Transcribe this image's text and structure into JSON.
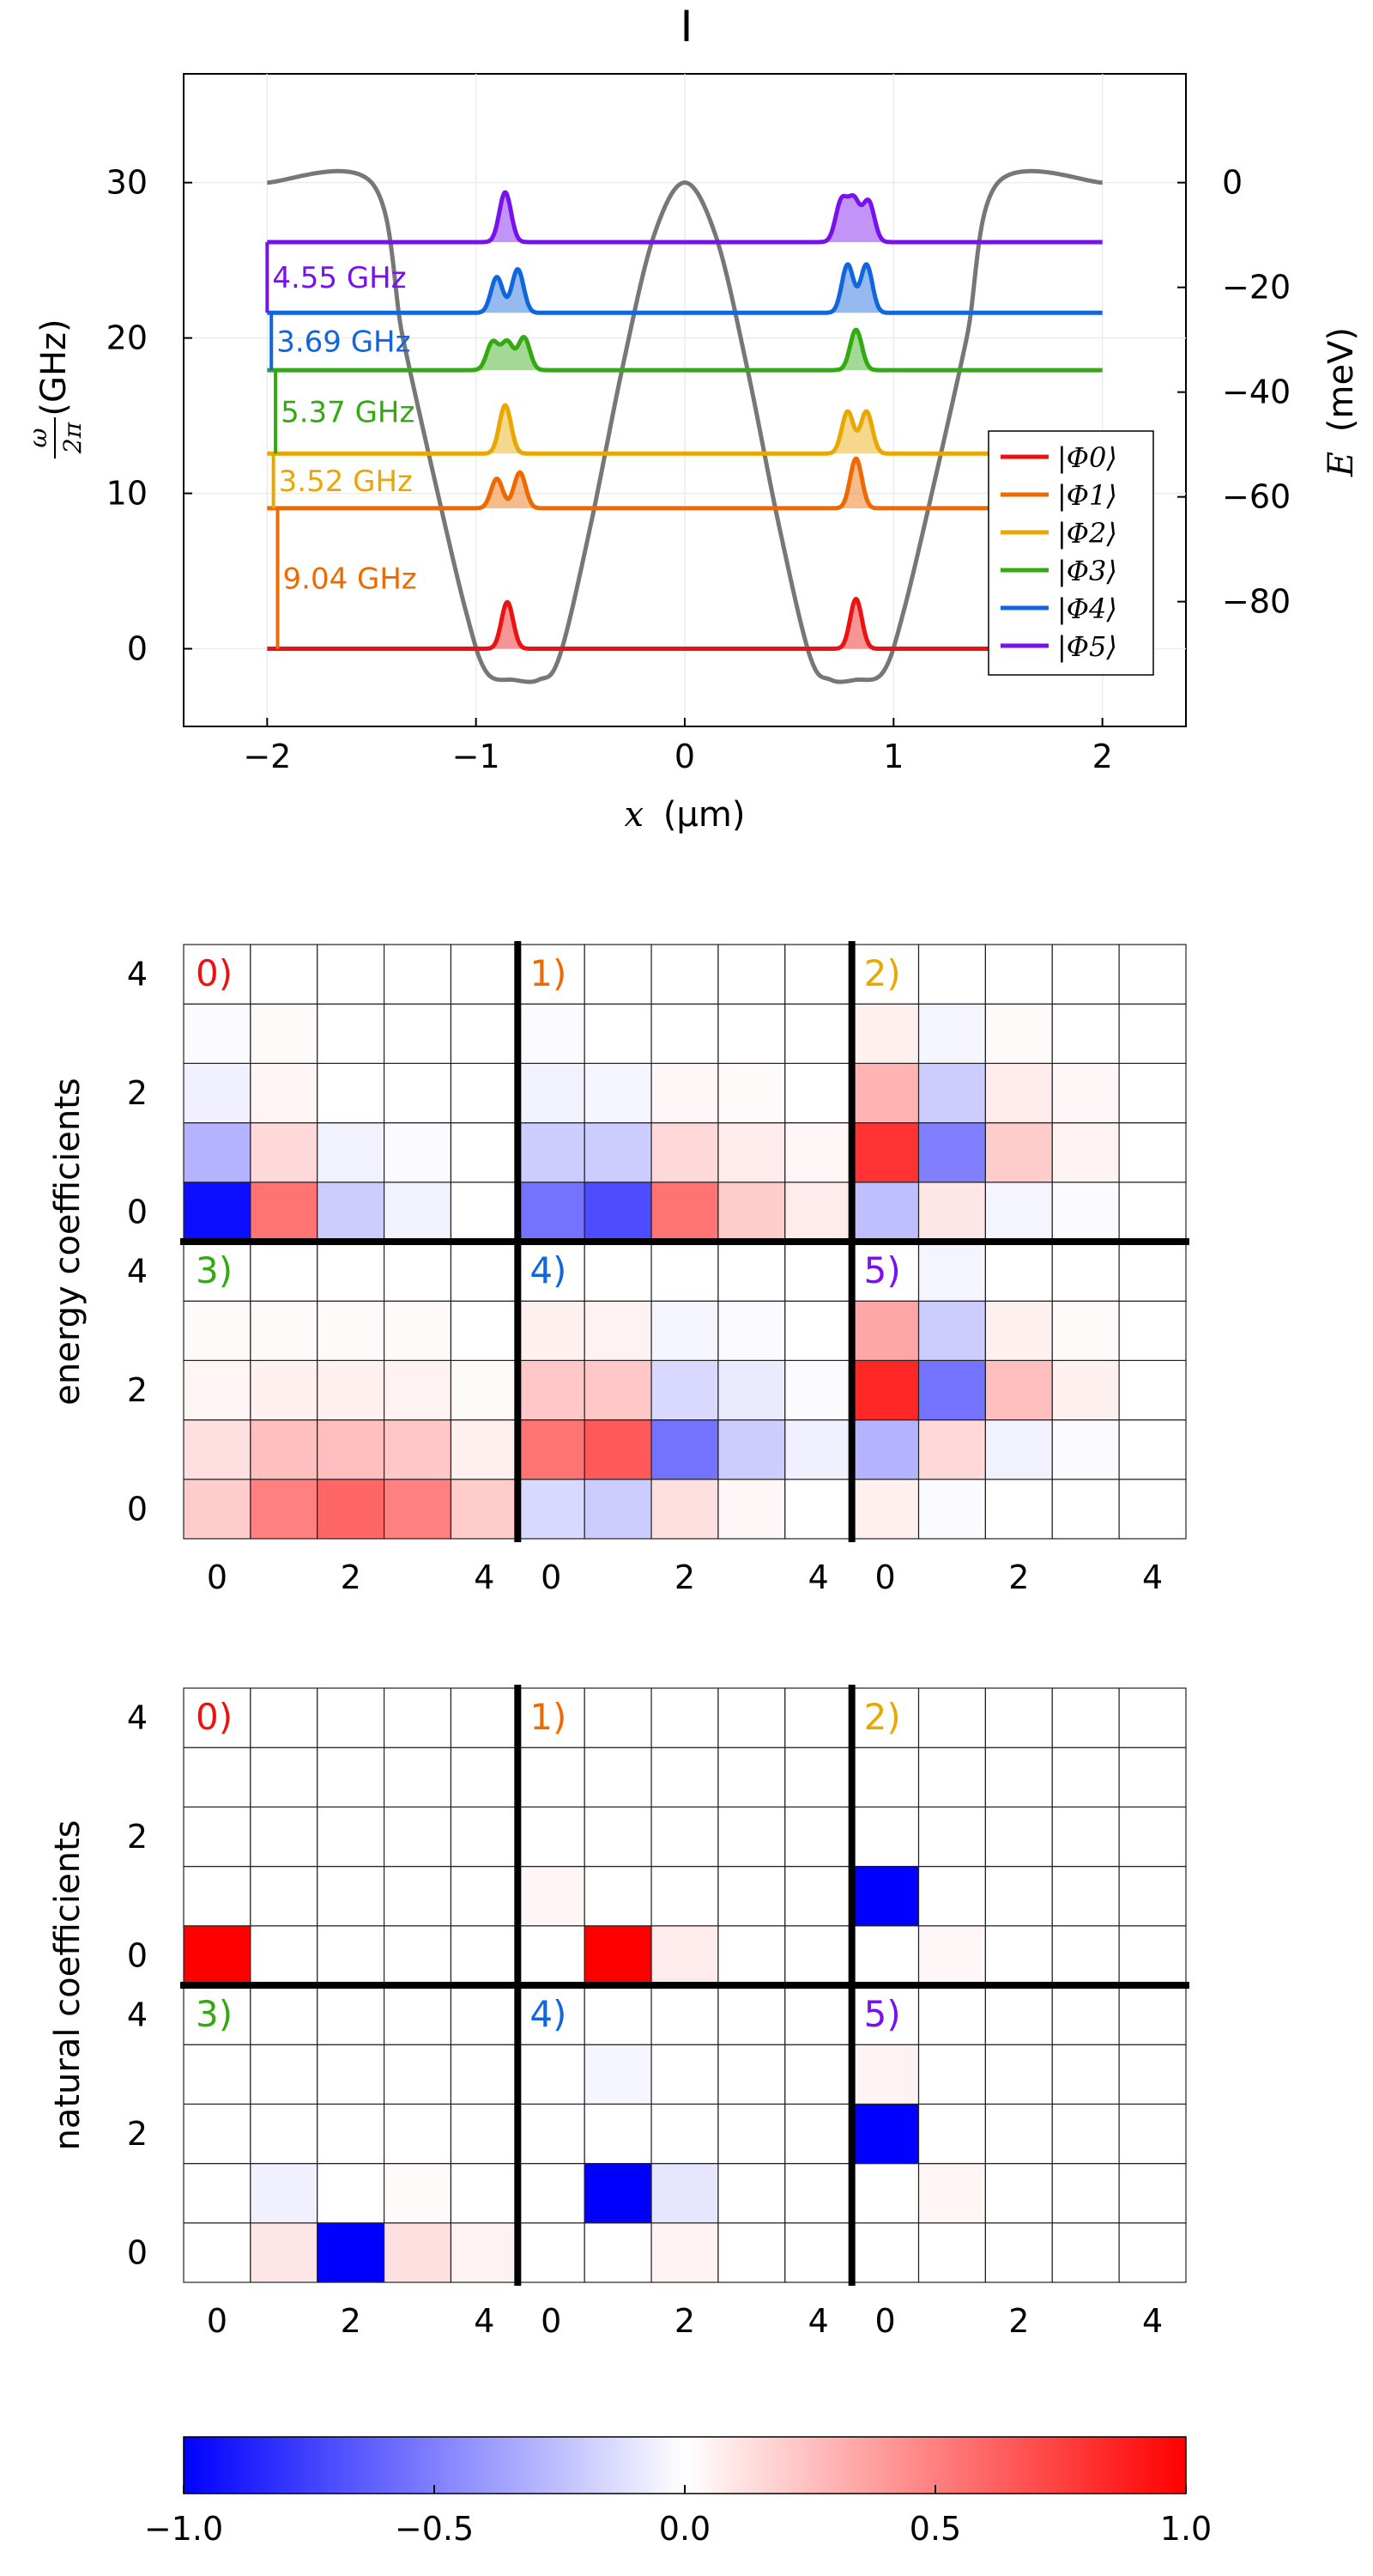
{
  "title": "I",
  "chart_data": [
    {
      "type": "line",
      "xlabel_var": "x",
      "xlabel_unit": "(μm)",
      "ylabel_left_unit": "(GHz)",
      "ylabel_left_num": "ω",
      "ylabel_left_den": "2π",
      "ylabel_right_var": "E",
      "ylabel_right_unit": "(meV)",
      "xlim": [
        -2.4,
        2.4
      ],
      "ylim_left": [
        -5,
        37
      ],
      "xticks": [
        -2,
        -1,
        0,
        1,
        2
      ],
      "xtick_labels": [
        "−2",
        "−1",
        "0",
        "1",
        "2"
      ],
      "yticks_left": [
        0,
        10,
        20,
        30
      ],
      "yticks_left_labels": [
        "0",
        "10",
        "20",
        "30"
      ],
      "yticks_right": [
        0,
        -20,
        -40,
        -60,
        -80
      ],
      "yticks_right_labels": [
        "0",
        "−20",
        "−40",
        "−60",
        "−80"
      ],
      "right_axis_map": {
        "E0": 0,
        "omega_at_E0": 30,
        "omega_per_meV": 0.3371
      },
      "grid": true,
      "potential": {
        "color": "#777777",
        "points": [
          [
            -2,
            30
          ],
          [
            -1.5,
            30
          ],
          [
            -1.35,
            20
          ],
          [
            -1.2,
            11
          ],
          [
            -1.05,
            2.5
          ],
          [
            -0.95,
            -1.5
          ],
          [
            -0.82,
            -2
          ],
          [
            -0.7,
            -2
          ],
          [
            -0.6,
            -0.5
          ],
          [
            -0.45,
            8
          ],
          [
            -0.3,
            18
          ],
          [
            -0.15,
            26.5
          ],
          [
            0,
            30
          ],
          [
            0.15,
            26.5
          ],
          [
            0.3,
            18
          ],
          [
            0.45,
            8
          ],
          [
            0.6,
            -0.5
          ],
          [
            0.7,
            -2
          ],
          [
            0.82,
            -2
          ],
          [
            0.95,
            -1.5
          ],
          [
            1.05,
            2.5
          ],
          [
            1.2,
            11
          ],
          [
            1.35,
            20
          ],
          [
            1.5,
            30
          ],
          [
            2,
            30
          ]
        ]
      },
      "series": [
        {
          "name": "|Φ0⟩",
          "color": "#ee1111",
          "baseline": 0,
          "peaks": [
            [
              -0.85,
              3
            ],
            [
              0.82,
              3.2
            ]
          ]
        },
        {
          "name": "|Φ1⟩",
          "color": "#ee6a00",
          "baseline": 9.04,
          "peaks": [
            [
              -0.9,
              1.9
            ],
            [
              -0.79,
              2.3
            ],
            [
              0.82,
              3.2
            ]
          ]
        },
        {
          "name": "|Φ2⟩",
          "color": "#e8a800",
          "baseline": 12.56,
          "peaks": [
            [
              -0.86,
              3.1
            ],
            [
              0.78,
              2.7
            ],
            [
              0.87,
              2.7
            ]
          ]
        },
        {
          "name": "|Φ3⟩",
          "color": "#33aa11",
          "baseline": 17.93,
          "peaks": [
            [
              -0.92,
              1.8
            ],
            [
              -0.85,
              1.8
            ],
            [
              -0.77,
              2.1
            ],
            [
              0.82,
              2.6
            ]
          ]
        },
        {
          "name": "|Φ4⟩",
          "color": "#1166dd",
          "baseline": 21.62,
          "peaks": [
            [
              -0.9,
              2.3
            ],
            [
              -0.8,
              2.8
            ],
            [
              0.78,
              3.1
            ],
            [
              0.87,
              3.1
            ]
          ]
        },
        {
          "name": "|Φ5⟩",
          "color": "#7711ee",
          "baseline": 26.17,
          "peaks": [
            [
              -0.86,
              3.2
            ],
            [
              0.75,
              2.6
            ],
            [
              0.81,
              2.6
            ],
            [
              0.88,
              2.6
            ]
          ]
        }
      ],
      "annotations": [
        {
          "text": "9.04 GHz",
          "color": "#ee6a00",
          "y0": 0,
          "y1": 9.04,
          "xa": -1.95
        },
        {
          "text": "3.52 GHz",
          "color": "#e8a800",
          "y0": 9.04,
          "y1": 12.56,
          "xa": -1.97
        },
        {
          "text": "5.37 GHz",
          "color": "#33aa11",
          "y0": 12.56,
          "y1": 17.93,
          "xa": -1.96
        },
        {
          "text": "3.69 GHz",
          "color": "#1166dd",
          "y0": 17.93,
          "y1": 21.62,
          "xa": -1.98
        },
        {
          "text": "4.55 GHz",
          "color": "#7711ee",
          "y0": 21.62,
          "y1": 26.17,
          "xa": -2.0
        }
      ],
      "legend_position": "bottom-right"
    },
    {
      "type": "heatmap",
      "ylabel": "energy coefficients",
      "panel_labels": [
        "0)",
        "1)",
        "2)",
        "3)",
        "4)",
        "5)"
      ],
      "tick_labels": [
        "0",
        "2",
        "4"
      ],
      "matrices": [
        [
          [
            -0.95,
            0.55,
            -0.2,
            -0.05,
            0
          ],
          [
            -0.3,
            0.15,
            -0.05,
            -0.02,
            0
          ],
          [
            -0.06,
            0.04,
            0,
            0,
            0
          ],
          [
            -0.02,
            0.02,
            0,
            0,
            0
          ],
          [
            0,
            0,
            0,
            0,
            0
          ]
        ],
        [
          [
            -0.55,
            -0.7,
            0.55,
            0.2,
            0.08
          ],
          [
            -0.2,
            -0.2,
            0.15,
            0.08,
            0.03
          ],
          [
            -0.05,
            -0.04,
            0.03,
            0.02,
            0
          ],
          [
            -0.02,
            0,
            0,
            0,
            0
          ],
          [
            0,
            0,
            0,
            0,
            0
          ]
        ],
        [
          [
            -0.25,
            0.1,
            -0.04,
            -0.02,
            0
          ],
          [
            0.8,
            -0.5,
            0.2,
            0.05,
            0
          ],
          [
            0.3,
            -0.2,
            0.08,
            0.03,
            0
          ],
          [
            0.06,
            -0.04,
            0.02,
            0,
            0
          ],
          [
            0,
            0,
            0,
            0,
            0
          ]
        ],
        [
          [
            0.2,
            0.5,
            0.6,
            0.5,
            0.2
          ],
          [
            0.12,
            0.25,
            0.25,
            0.22,
            0.06
          ],
          [
            0.04,
            0.06,
            0.06,
            0.05,
            0.02
          ],
          [
            0.02,
            0.02,
            0.02,
            0.02,
            0
          ],
          [
            0,
            0,
            0,
            0,
            0
          ]
        ],
        [
          [
            -0.15,
            -0.2,
            0.12,
            0.03,
            0
          ],
          [
            0.55,
            0.65,
            -0.55,
            -0.2,
            -0.06
          ],
          [
            0.22,
            0.22,
            -0.15,
            -0.08,
            -0.02
          ],
          [
            0.06,
            0.05,
            -0.04,
            -0.02,
            0
          ],
          [
            0,
            0,
            0,
            0,
            0
          ]
        ],
        [
          [
            0.06,
            -0.02,
            0,
            0,
            0
          ],
          [
            -0.3,
            0.15,
            -0.05,
            -0.02,
            0
          ],
          [
            0.85,
            -0.55,
            0.25,
            0.06,
            0
          ],
          [
            0.35,
            -0.2,
            0.06,
            0.02,
            0
          ],
          [
            0,
            -0.04,
            0,
            0,
            0
          ]
        ]
      ]
    },
    {
      "type": "heatmap",
      "ylabel": "natural coefficients",
      "panel_labels": [
        "0)",
        "1)",
        "2)",
        "3)",
        "4)",
        "5)"
      ],
      "tick_labels": [
        "0",
        "2",
        "4"
      ],
      "matrices": [
        [
          [
            1,
            0,
            0,
            0,
            0
          ],
          [
            0,
            0,
            0,
            0,
            0
          ],
          [
            0,
            0,
            0,
            0,
            0
          ],
          [
            0,
            0,
            0,
            0,
            0
          ],
          [
            0,
            0,
            0,
            0,
            0
          ]
        ],
        [
          [
            0,
            1,
            0.08,
            0,
            0
          ],
          [
            0.04,
            0,
            0,
            0,
            0
          ],
          [
            0,
            0,
            0,
            0,
            0
          ],
          [
            0,
            0,
            0,
            0,
            0
          ],
          [
            0,
            0,
            0,
            0,
            0
          ]
        ],
        [
          [
            0,
            0.03,
            0,
            0,
            0
          ],
          [
            -1,
            0,
            0,
            0,
            0
          ],
          [
            0,
            0,
            0,
            0,
            0
          ],
          [
            0,
            0,
            0,
            0,
            0
          ],
          [
            0,
            0,
            0,
            0,
            0
          ]
        ],
        [
          [
            0,
            0.1,
            -1,
            0.12,
            0.05
          ],
          [
            0,
            -0.06,
            0,
            0.02,
            0
          ],
          [
            0,
            0,
            0,
            0,
            0
          ],
          [
            0,
            0,
            0,
            0,
            0
          ],
          [
            0,
            0,
            0,
            0,
            0
          ]
        ],
        [
          [
            0,
            0,
            0.05,
            0,
            0
          ],
          [
            0,
            -1,
            -0.1,
            0,
            0
          ],
          [
            0,
            0,
            0,
            0,
            0
          ],
          [
            0,
            -0.04,
            0,
            0,
            0
          ],
          [
            0,
            0,
            0,
            0,
            0
          ]
        ],
        [
          [
            0,
            0,
            0,
            0,
            0
          ],
          [
            0,
            0.04,
            0,
            0,
            0
          ],
          [
            -1,
            0,
            0,
            0,
            0
          ],
          [
            0.05,
            0,
            0,
            0,
            0
          ],
          [
            0,
            0,
            0,
            0,
            0
          ]
        ]
      ]
    },
    {
      "type": "heatmap",
      "role": "colorbar",
      "range": [
        -1,
        1
      ],
      "tick_values": [
        -1,
        -0.5,
        0,
        0.5,
        1
      ],
      "tick_labels": [
        "−1.0",
        "−0.5",
        "0.0",
        "0.5",
        "1.0"
      ]
    }
  ]
}
